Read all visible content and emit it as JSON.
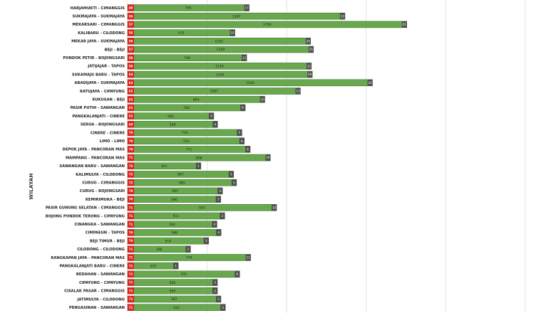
{
  "chart_data": {
    "type": "bar",
    "orientation": "horizontal",
    "ylabel": "WILAYAH",
    "xlim": [
      0,
      2600
    ],
    "grid": true,
    "colors": {
      "bar": "#6aa84f",
      "bar_edge": "#3d7a2a",
      "badge": "#e02020",
      "end_cap": "#4f4f4f",
      "grid": "#e3e3e3"
    },
    "categories": [
      "HARJAMUKTI - CIMANGGIS",
      "SUKMAJAYA - SUKMAJAYA",
      "MEKARSARI - CIMANGGIS",
      "KALIBARU - CILODONG",
      "MEKAR JAYA - SUKMAJAYA",
      "BEJI - BEJI",
      "PONDOK PETIR - BOJONGSARI",
      "JATIJAJAR - TAPOS",
      "SUKAMAJU BARU - TAPOS",
      "ABADIJAYA - SUKMAJAYA",
      "RATUJAYA - CIPAYUNG",
      "KUKUSAN - BEJI",
      "PASIR PUTIH - SAWANGAN",
      "PANGKALANJATI - CINERE",
      "SERUA - BOJONGSARI",
      "CINERE - CINERE",
      "LIMO - LIMO",
      "DEPOK JAYA - PANCORAN MAS",
      "MAMPANG - PANCORAN MAS",
      "SAWANGAN BARU - SAWANGAN",
      "KALIMULYA - CILODONG",
      "CURUG - CIMANGGIS",
      "CURUG - BOJONGSARI",
      "KEMIRIMUKA - BEJI",
      "PASIR GUNUNG SELATAN - CIMANGGIS",
      "BOJONG PONDOK TERONG - CIPAYUNG",
      "CINANGKA - SAWANGAN",
      "CIMPAEUN - TAPOS",
      "BEJI TIMUR - BEJI",
      "CILODONG - CILODONG",
      "RANGKAPAN JAYA - PANCORAN MAS",
      "PANGKALANJATI BARU - CINERE",
      "BEDAHAN - SAWANGAN",
      "CIPAYUNG - CIPAYUNG",
      "CISALAK PASAR - CIMANGGIS",
      "JATIMULYA - CILODONG",
      "PENGASINAN - SAWANGAN"
    ],
    "values": [
      765,
      1367,
      1756,
      675,
      1151,
      1169,
      749,
      1156,
      1162,
      1540,
      1087,
      863,
      740,
      542,
      566,
      719,
      734,
      771,
      898,
      461,
      667,
      685,
      597,
      586,
      937,
      611,
      562,
      588,
      510,
      396,
      774,
      319,
      705,
      565,
      565,
      587,
      615
    ],
    "badges": [
      "49",
      "56",
      "57",
      "56",
      "55",
      "57",
      "58",
      "58",
      "64",
      "63",
      "62",
      "62",
      "61",
      "61",
      "60",
      "70",
      "70",
      "70",
      "71",
      "72",
      "72",
      "72",
      "70",
      "70",
      "71",
      "71",
      "71",
      "70",
      "70",
      "71",
      "71",
      "71",
      "71",
      "71",
      "71",
      "71",
      "71"
    ],
    "end_labels": [
      "17",
      "32",
      "65",
      "10",
      "20",
      "25",
      "11",
      "22",
      "46",
      "42",
      "13",
      "10",
      "6",
      "4",
      "4",
      "5",
      "6",
      "8",
      "19",
      "1",
      "5",
      "5",
      "3",
      "3",
      "10",
      "3",
      "4",
      "4",
      "3",
      "2",
      "11",
      "1",
      "6",
      "3",
      "3",
      "3",
      "3"
    ]
  }
}
